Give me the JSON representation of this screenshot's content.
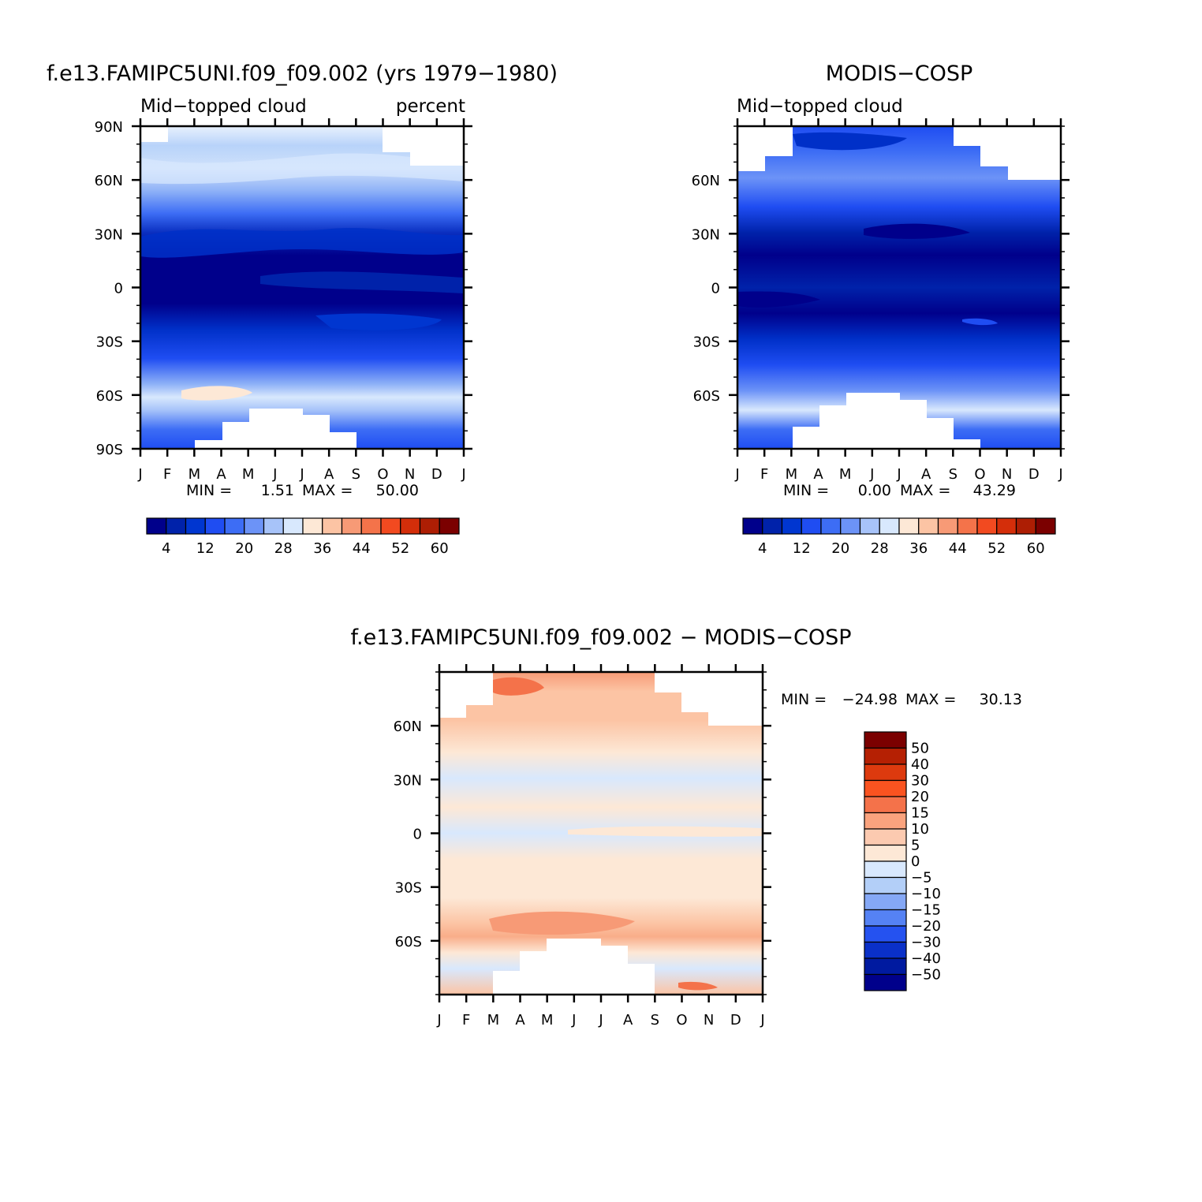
{
  "chart_data": [
    {
      "type": "heatmap",
      "title": "f.e13.FAMIPC5UNI.f09_f09.002 (yrs 1979−1980)",
      "left_label": "Mid−topped cloud",
      "right_label": "percent",
      "x_ticks": [
        "J",
        "F",
        "M",
        "A",
        "M",
        "J",
        "J",
        "A",
        "S",
        "O",
        "N",
        "D",
        "J"
      ],
      "y_ticks": [
        "90N",
        "60N",
        "30N",
        "0",
        "30S",
        "60S",
        "90S"
      ],
      "min_label": "MIN =",
      "min_value": "1.51",
      "max_label": "MAX =",
      "max_value": "50.00",
      "colorbar": {
        "labels": [
          "4",
          "12",
          "20",
          "28",
          "36",
          "44",
          "52",
          "60"
        ],
        "colors": [
          "#00008b",
          "#0022aa",
          "#0036d0",
          "#1f4df2",
          "#3d6df5",
          "#6c93f7",
          "#a7c3f9",
          "#d8e8fd",
          "#fde8d6",
          "#fcc4a4",
          "#f79a76",
          "#f4734a",
          "#f24a20",
          "#d42e0a",
          "#ad1e04",
          "#7b0000"
        ]
      },
      "zonal_profile_percent": [
        {
          "lat": 90,
          "value": 24
        },
        {
          "lat": 75,
          "value": 27
        },
        {
          "lat": 60,
          "value": 26
        },
        {
          "lat": 45,
          "value": 18
        },
        {
          "lat": 30,
          "value": 10
        },
        {
          "lat": 15,
          "value": 3
        },
        {
          "lat": 0,
          "value": 2
        },
        {
          "lat": -15,
          "value": 4
        },
        {
          "lat": -30,
          "value": 9
        },
        {
          "lat": -45,
          "value": 16
        },
        {
          "lat": -60,
          "value": 28
        },
        {
          "lat": -75,
          "value": 22
        },
        {
          "lat": -90,
          "value": 14
        }
      ]
    },
    {
      "type": "heatmap",
      "title": "MODIS−COSP",
      "left_label": "Mid−topped cloud",
      "x_ticks": [
        "J",
        "F",
        "M",
        "A",
        "M",
        "J",
        "J",
        "A",
        "S",
        "O",
        "N",
        "D",
        "J"
      ],
      "y_ticks": [
        "60N",
        "30N",
        "0",
        "30S",
        "60S"
      ],
      "min_label": "MIN =",
      "min_value": "0.00",
      "max_label": "MAX =",
      "max_value": "43.29",
      "colorbar": {
        "labels": [
          "4",
          "12",
          "20",
          "28",
          "36",
          "44",
          "52",
          "60"
        ],
        "colors": [
          "#00008b",
          "#0022aa",
          "#0036d0",
          "#1f4df2",
          "#3d6df5",
          "#6c93f7",
          "#a7c3f9",
          "#d8e8fd",
          "#fde8d6",
          "#fcc4a4",
          "#f79a76",
          "#f4734a",
          "#f24a20",
          "#d42e0a",
          "#ad1e04",
          "#7b0000"
        ]
      },
      "zonal_profile_percent": [
        {
          "lat": 90,
          "value": 10
        },
        {
          "lat": 75,
          "value": 14
        },
        {
          "lat": 60,
          "value": 18
        },
        {
          "lat": 45,
          "value": 14
        },
        {
          "lat": 30,
          "value": 8
        },
        {
          "lat": 15,
          "value": 2
        },
        {
          "lat": 0,
          "value": 3
        },
        {
          "lat": -15,
          "value": 2
        },
        {
          "lat": -30,
          "value": 6
        },
        {
          "lat": -45,
          "value": 12
        },
        {
          "lat": -60,
          "value": 20
        },
        {
          "lat": -75,
          "value": 14
        },
        {
          "lat": -90,
          "value": 10
        }
      ]
    },
    {
      "type": "heatmap",
      "title": "f.e13.FAMIPC5UNI.f09_f09.002 − MODIS−COSP",
      "x_ticks": [
        "J",
        "F",
        "M",
        "A",
        "M",
        "J",
        "J",
        "A",
        "S",
        "O",
        "N",
        "D",
        "J"
      ],
      "y_ticks": [
        "60N",
        "30N",
        "0",
        "30S",
        "60S"
      ],
      "min_label": "MIN =",
      "min_value": "−24.98",
      "max_label": "MAX =",
      "max_value": "30.13",
      "colorbar": {
        "labels": [
          "50",
          "40",
          "30",
          "20",
          "15",
          "10",
          "5",
          "0",
          "−5",
          "−10",
          "−15",
          "−20",
          "−30",
          "−40",
          "−50"
        ],
        "colors_top_to_bottom": [
          "#7b0000",
          "#b52003",
          "#dd3a0e",
          "#fa5320",
          "#f4724a",
          "#faa37e",
          "#fccab0",
          "#fde8d6",
          "#d8e8fd",
          "#b3cff8",
          "#85a8f6",
          "#5582f4",
          "#2552f0",
          "#0a30c8",
          "#001aa0",
          "#00008b"
        ]
      },
      "zonal_profile_difference": [
        {
          "lat": 90,
          "value": 12
        },
        {
          "lat": 75,
          "value": 9
        },
        {
          "lat": 60,
          "value": 7
        },
        {
          "lat": 45,
          "value": 6
        },
        {
          "lat": 30,
          "value": 2
        },
        {
          "lat": 15,
          "value": -2
        },
        {
          "lat": 0,
          "value": 1
        },
        {
          "lat": -15,
          "value": -1
        },
        {
          "lat": -30,
          "value": 3
        },
        {
          "lat": -45,
          "value": 8
        },
        {
          "lat": -60,
          "value": 4
        },
        {
          "lat": -75,
          "value": -3
        },
        {
          "lat": -90,
          "value": 2
        }
      ]
    }
  ]
}
